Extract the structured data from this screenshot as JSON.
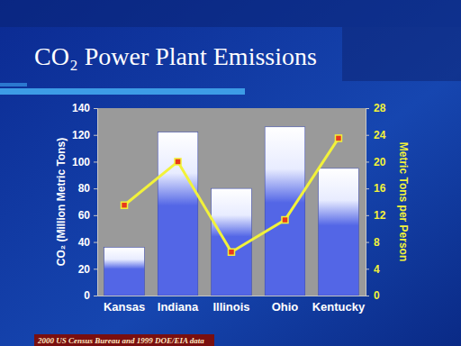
{
  "chart_data": {
    "type": "bar",
    "title": "CO₂ Power Plant Emissions",
    "y_label": "CO₂ (Million Metric Tons)",
    "y2_label": "Metric Tons per Person",
    "source": "2000 US Census Bureau and 1999 DOE/EIA data",
    "categories": [
      "Kansas",
      "Indiana",
      "Illinois",
      "Ohio",
      "Kentucky"
    ],
    "series": [
      {
        "type": "bar",
        "color": "#5366e6",
        "values": [
          36,
          122,
          80,
          126,
          95
        ]
      },
      {
        "type": "line",
        "axis": "y2",
        "color": "#f2f23a",
        "marker": "square",
        "values": [
          13.5,
          20,
          6.5,
          11.3,
          23.5
        ]
      }
    ],
    "ylim": [
      0,
      140
    ],
    "yticks": [
      0,
      20,
      40,
      60,
      80,
      100,
      120,
      140
    ],
    "y2lim": [
      0,
      28
    ],
    "y2ticks": [
      0,
      4,
      8,
      12,
      16,
      20,
      24,
      28
    ],
    "grid": false
  }
}
